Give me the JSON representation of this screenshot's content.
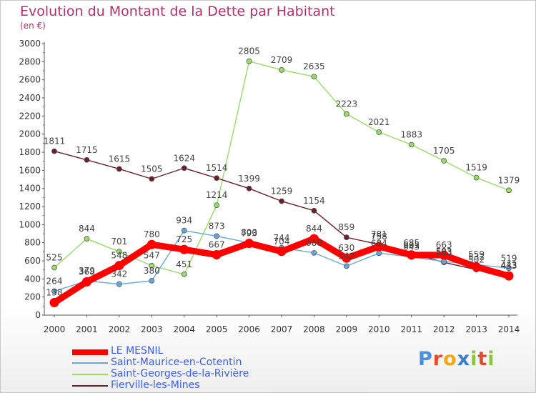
{
  "chart_data": {
    "type": "line",
    "title": "Evolution du Montant de la Dette par Habitant",
    "subtitle": "(en €)",
    "x": [
      "2000",
      "2001",
      "2002",
      "2003",
      "2004",
      "2005",
      "2006",
      "2007",
      "2008",
      "2009",
      "2010",
      "2011",
      "2012",
      "2013",
      "2014"
    ],
    "ylim": [
      0,
      3000
    ],
    "yticks": [
      0,
      200,
      400,
      600,
      800,
      1000,
      1200,
      1400,
      1600,
      1800,
      2000,
      2200,
      2400,
      2600,
      2800,
      3000
    ],
    "grid": false,
    "legend_position": "bottom-left",
    "series": [
      {
        "name": "Saint-Georges-de-la-Rivière",
        "color": "#99dd66",
        "values": [
          525,
          844,
          701,
          547,
          451,
          1214,
          2805,
          2709,
          2635,
          2223,
          2021,
          1883,
          1705,
          1519,
          1379
        ]
      },
      {
        "name": "Fierville-les-Mines",
        "color": "#6b1e2a",
        "values": [
          1811,
          1715,
          1615,
          1505,
          1624,
          1514,
          1399,
          1259,
          1154,
          859,
          781,
          685,
          583,
          502,
          443
        ]
      },
      {
        "name": "Saint-Maurice-en-Cotentin",
        "color": "#66a8dd",
        "values": [
          264,
          379,
          342,
          380,
          934,
          873,
          800,
          744,
          688,
          542,
          684,
          643,
          593,
          559,
          519
        ]
      },
      {
        "name": "LE MESNIL",
        "color": "#ff0000",
        "values": [
          138,
          368,
          548,
          780,
          725,
          667,
          793,
          704,
          844,
          630,
          758,
          665,
          663,
          532,
          433
        ]
      }
    ]
  },
  "legend": [
    {
      "label": "LE MESNIL",
      "color": "#ff0000"
    },
    {
      "label": "Saint-Maurice-en-Cotentin",
      "color": "#66a8dd"
    },
    {
      "label": "Saint-Georges-de-la-Rivière",
      "color": "#99dd66"
    },
    {
      "label": "Fierville-les-Mines",
      "color": "#6b1e2a"
    }
  ],
  "logo": {
    "letters": [
      "P",
      "r",
      "o",
      "x",
      "i",
      "t",
      "i"
    ],
    "colors": [
      "#4a8fd8",
      "#e84b2a",
      "#f3a818",
      "#3a7fc8",
      "#8cc63e",
      "#e84b2a",
      "#8cc63e"
    ]
  }
}
